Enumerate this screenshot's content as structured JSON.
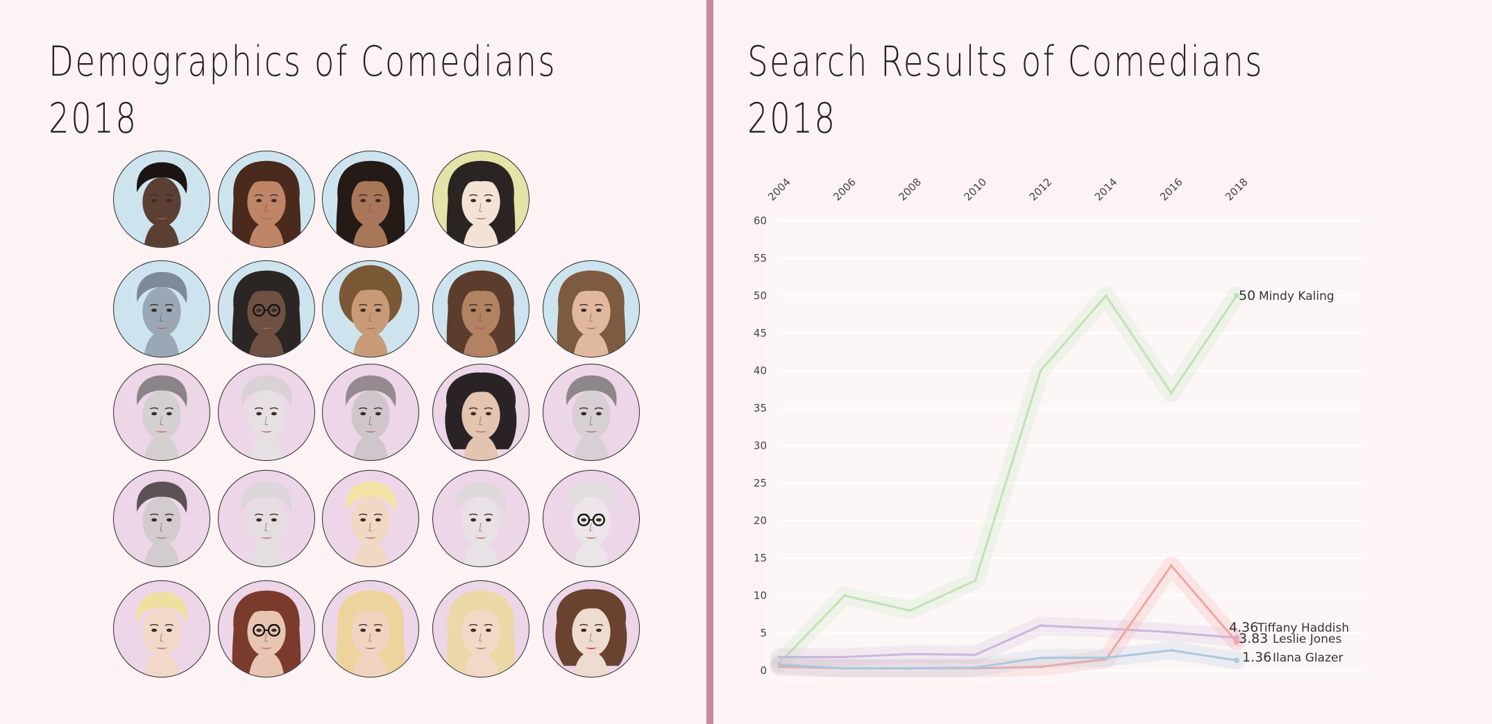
{
  "left": {
    "title_line1": "Demographics of Comedians",
    "title_line2": "2018",
    "portraits": [
      {
        "bg": "#cde4ef",
        "skin": "#5c3f33",
        "hair": "#1c1413",
        "style": "short"
      },
      {
        "bg": "#cde4ef",
        "skin": "#c08466",
        "hair": "#4a2a1c",
        "style": "long"
      },
      {
        "bg": "#cde4ef",
        "skin": "#a87658",
        "hair": "#241a16",
        "style": "long"
      },
      {
        "bg": "#e4e3a8",
        "skin": "#f3e3d6",
        "hair": "#2a2422",
        "style": "long"
      },
      {
        "bg": "#cde4ef",
        "skin": "#9aa7b4",
        "hair": "#7c8996",
        "style": "short"
      },
      {
        "bg": "#cde4ef",
        "skin": "#6e5143",
        "hair": "#2b2523",
        "style": "long",
        "glasses": true
      },
      {
        "bg": "#cde4ef",
        "skin": "#c89a78",
        "hair": "#7a5836",
        "style": "afro"
      },
      {
        "bg": "#cde4ef",
        "skin": "#b28262",
        "hair": "#5c3c2c",
        "style": "long"
      },
      {
        "bg": "#cde4ef",
        "skin": "#e0b8a0",
        "hair": "#7d5a40",
        "style": "long"
      },
      {
        "bg": "#ecd6e7",
        "skin": "#d4d0d2",
        "hair": "#8a8488",
        "style": "short"
      },
      {
        "bg": "#ecd6e7",
        "skin": "#e6e0e4",
        "hair": "#d8d2d6",
        "style": "short"
      },
      {
        "bg": "#ecd6e7",
        "skin": "#cfc6cb",
        "hair": "#948a90",
        "style": "short"
      },
      {
        "bg": "#ecd6e7",
        "skin": "#e2c4b0",
        "hair": "#2a2326",
        "style": "curly"
      },
      {
        "bg": "#ecd6e7",
        "skin": "#d6d0d4",
        "hair": "#8d878b",
        "style": "short"
      },
      {
        "bg": "#ecd6e7",
        "skin": "#d2cbcf",
        "hair": "#5a5256",
        "style": "short"
      },
      {
        "bg": "#ecd6e7",
        "skin": "#e4dee2",
        "hair": "#dcd6da",
        "style": "short"
      },
      {
        "bg": "#ecd6e7",
        "skin": "#f0d8c4",
        "hair": "#f3e3a4",
        "style": "short"
      },
      {
        "bg": "#ecd6e7",
        "skin": "#e8e2e6",
        "hair": "#ded8dc",
        "style": "short"
      },
      {
        "bg": "#ecd6e7",
        "skin": "#ebe5e9",
        "hair": "#e2dde0",
        "style": "short",
        "glasses": true
      },
      {
        "bg": "#ecd6e7",
        "skin": "#f2d8c8",
        "hair": "#f0e0a0",
        "style": "short"
      },
      {
        "bg": "#ecd6e7",
        "skin": "#e8c4b2",
        "hair": "#7a3a2c",
        "style": "long",
        "glasses": true
      },
      {
        "bg": "#ecd6e7",
        "skin": "#f0d4c0",
        "hair": "#ecd49c",
        "style": "long"
      },
      {
        "bg": "#ecd6e7",
        "skin": "#f2d8c6",
        "hair": "#ecd8a6",
        "style": "long"
      },
      {
        "bg": "#ecd6e7",
        "skin": "#efdcd0",
        "hair": "#6a4230",
        "style": "curly",
        "red_lips": true
      }
    ]
  },
  "right": {
    "title_line1": "Search Results of Comedians",
    "title_line2": "2018"
  },
  "chart_data": {
    "type": "line",
    "title": "Search Results of Comedians 2018",
    "x": [
      2004,
      2006,
      2008,
      2010,
      2012,
      2014,
      2016,
      2018
    ],
    "x_tick_labels": [
      "2004",
      "2006",
      "2008",
      "2010",
      "2012",
      "2014",
      "2016",
      "2018"
    ],
    "y_tick_labels": [
      "0",
      "5",
      "10",
      "15",
      "20",
      "25",
      "30",
      "35",
      "40",
      "45",
      "50",
      "55",
      "60"
    ],
    "ylim": [
      0,
      60
    ],
    "grid": true,
    "series": [
      {
        "name": "Mindy Kaling",
        "end_label": "50",
        "color": "#bfe3b4",
        "values": [
          1,
          10,
          8,
          12,
          40,
          50,
          37,
          50
        ]
      },
      {
        "name": "Tiffany Haddish",
        "end_label": "4.36",
        "color": "#cbb6dc",
        "values": [
          1.8,
          1.8,
          2.2,
          2.1,
          6,
          5.6,
          5.1,
          4.36
        ]
      },
      {
        "name": "Leslie Jones",
        "end_label": "3.83",
        "color": "#f2a5a2",
        "values": [
          0.5,
          0.3,
          0.3,
          0.3,
          0.5,
          1.5,
          14,
          3.83
        ]
      },
      {
        "name": "Ilana Glazer",
        "end_label": "1.36",
        "color": "#a9c8e0",
        "values": [
          0.8,
          0.3,
          0.3,
          0.4,
          1.7,
          1.7,
          2.7,
          1.36
        ]
      }
    ]
  }
}
